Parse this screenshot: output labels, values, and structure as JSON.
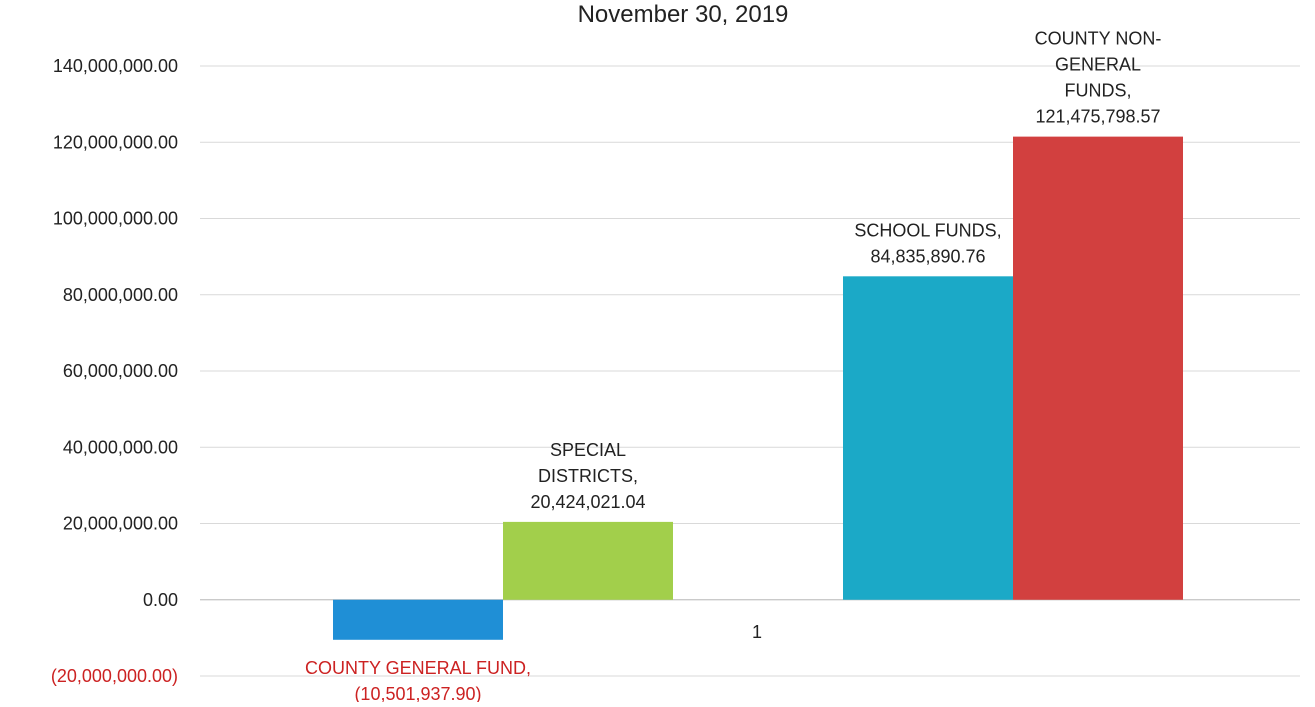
{
  "chart_data": {
    "type": "bar",
    "title": "November 30, 2019",
    "categories": [
      "1"
    ],
    "xlabel": "",
    "ylabel": "",
    "ylim": [
      -20000000,
      140000000
    ],
    "yticks": [
      {
        "value": 140000000,
        "label": "140,000,000.00"
      },
      {
        "value": 120000000,
        "label": "120,000,000.00"
      },
      {
        "value": 100000000,
        "label": "100,000,000.00"
      },
      {
        "value": 80000000,
        "label": "80,000,000.00"
      },
      {
        "value": 60000000,
        "label": "60,000,000.00"
      },
      {
        "value": 40000000,
        "label": "40,000,000.00"
      },
      {
        "value": 20000000,
        "label": "20,000,000.00"
      },
      {
        "value": 0,
        "label": "0.00"
      },
      {
        "value": -20000000,
        "label": "(20,000,000.00)"
      }
    ],
    "grid": true,
    "legend": "none",
    "series": [
      {
        "name": "COUNTY GENERAL FUND",
        "values": [
          -10501937.9
        ],
        "label_lines": [
          "COUNTY GENERAL FUND,",
          "(10,501,937.90)"
        ],
        "color": "#1f8fd6",
        "label_color": "#cc2222"
      },
      {
        "name": "SPECIAL DISTRICTS",
        "values": [
          20424021.04
        ],
        "label_lines": [
          "SPECIAL",
          "DISTRICTS,",
          "20,424,021.04"
        ],
        "color": "#a2cf4b",
        "label_color": "#222222"
      },
      {
        "name": "SCHOOL FUNDS",
        "values": [
          84835890.76
        ],
        "label_lines": [
          "SCHOOL FUNDS,",
          "84,835,890.76"
        ],
        "color": "#1ba9c7",
        "label_color": "#222222"
      },
      {
        "name": "COUNTY NON-GENERAL FUNDS",
        "values": [
          121475798.57
        ],
        "label_lines": [
          "COUNTY NON-",
          "GENERAL",
          "FUNDS,",
          "121,475,798.57"
        ],
        "color": "#d2403f",
        "label_color": "#222222"
      }
    ],
    "colors": {
      "negative_text": "#cc2222",
      "axis_text": "#222222",
      "grid": "#d9d9d9"
    }
  }
}
